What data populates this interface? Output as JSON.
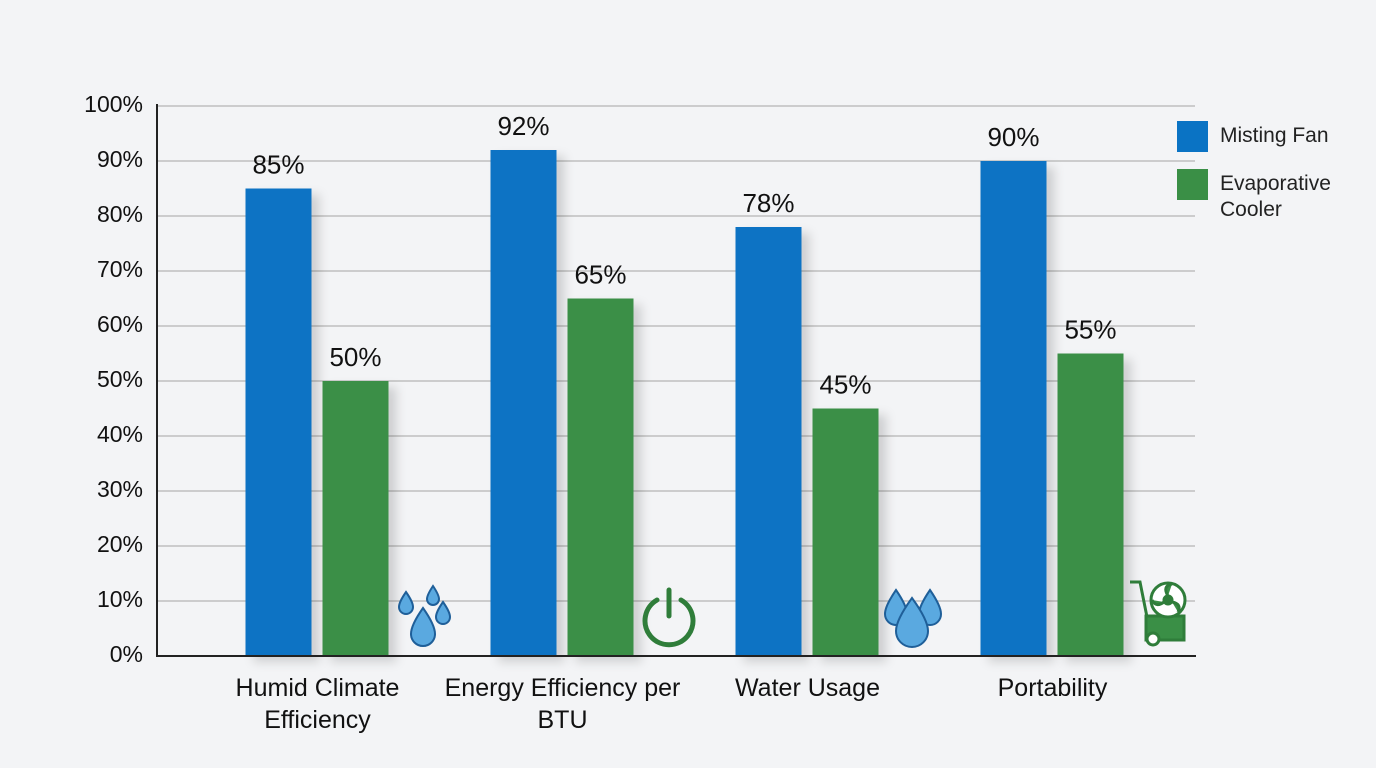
{
  "chart_data": {
    "type": "bar",
    "categories": [
      "Humid Climate Efficiency",
      "Energy Efficiency per BTU",
      "Water Usage",
      "Portability"
    ],
    "series": [
      {
        "name": "Misting Fan",
        "color": "#0a73c4",
        "values": [
          85,
          92,
          78,
          90
        ],
        "value_labels": [
          "85%",
          "92%",
          "78%",
          "90%"
        ]
      },
      {
        "name": "Evaporative Cooler",
        "color": "#3a8f46",
        "values": [
          50,
          65,
          45,
          55
        ],
        "value_labels": [
          "50%",
          "65%",
          "45%",
          "55%"
        ]
      }
    ],
    "ylim": [
      0,
      100
    ],
    "yticks": [
      {
        "value": 0,
        "label": "0%"
      },
      {
        "value": 10,
        "label": "10%"
      },
      {
        "value": 20,
        "label": "20%"
      },
      {
        "value": 30,
        "label": "30%"
      },
      {
        "value": 40,
        "label": "40%"
      },
      {
        "value": 50,
        "label": "50%"
      },
      {
        "value": 60,
        "label": "60%"
      },
      {
        "value": 70,
        "label": "70%"
      },
      {
        "value": 80,
        "label": "80%"
      },
      {
        "value": 90,
        "label": "90%"
      },
      {
        "value": 100,
        "label": "100%"
      }
    ],
    "grid": true,
    "legend": "right"
  }
}
